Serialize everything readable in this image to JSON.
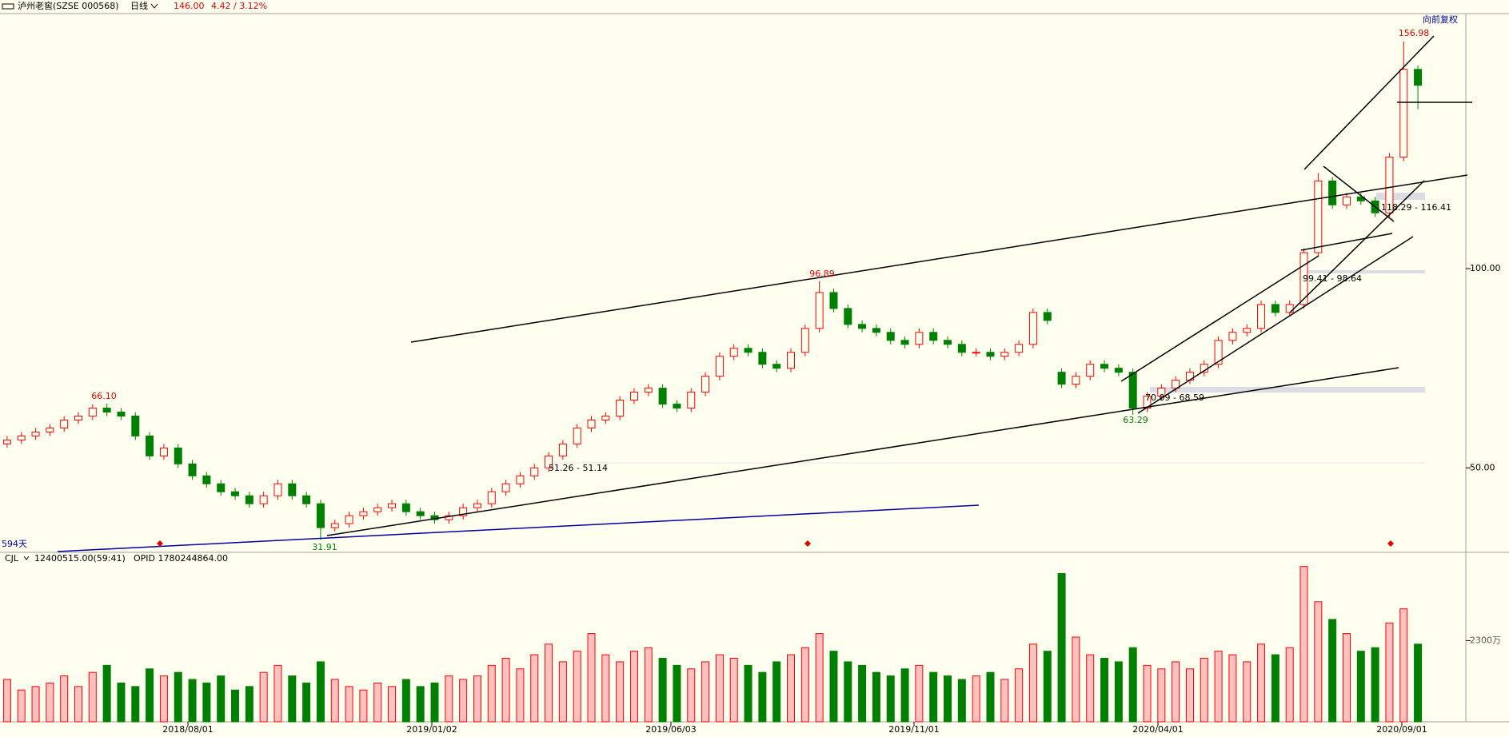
{
  "header": {
    "symbol": "泸州老窖(SZSE 000568)",
    "period": "日线",
    "price": "146.00",
    "change": "4.42 / 3.12%",
    "adjust": "向前复权"
  },
  "volume_header": {
    "name": "CJL",
    "value": "12400515.00(59:41)",
    "opid": "OPID 1780244864.00"
  },
  "annotations": {
    "high1": "66.10",
    "low1": "31.91",
    "high2": "96.89",
    "low2": "63.29",
    "high3": "156.98",
    "range1": "51.26 - 51.14",
    "range2": "70.09 - 68.59",
    "range3": "99.41 - 98.64",
    "range4": "118.29 - 116.41",
    "days": "594天"
  },
  "chart_data": {
    "type": "candlestick",
    "up_color": "#ff0000",
    "down_color": "#008000",
    "xlabels": [
      "2018/08/01",
      "2019/01/02",
      "2019/06/03",
      "2019/11/01",
      "2020/04/01",
      "2020/09/01"
    ],
    "ylim": [
      29,
      164
    ],
    "yticks": [
      {
        "value": 50,
        "label": "50.00"
      },
      {
        "value": 100,
        "label": "100.00"
      }
    ],
    "open": [
      56,
      57,
      58,
      59,
      60,
      62,
      63,
      65,
      64,
      63,
      58,
      53,
      55,
      51,
      48,
      46,
      44,
      43,
      41,
      43,
      46,
      43,
      41,
      35,
      36,
      38,
      39,
      40,
      41,
      39,
      38,
      37,
      38,
      40,
      41,
      44,
      46,
      48,
      50,
      53,
      56,
      60,
      62,
      63,
      67,
      69,
      70,
      66,
      65,
      69,
      73,
      78,
      80,
      79,
      76,
      75,
      79,
      85,
      94,
      90,
      86,
      85,
      84,
      82,
      81,
      84,
      82,
      81,
      79,
      79,
      78,
      79,
      81,
      89,
      74,
      71,
      73,
      76,
      75,
      74,
      65,
      68,
      70,
      72,
      74,
      76,
      82,
      84,
      85,
      91,
      89,
      91,
      104,
      122,
      116,
      118,
      117,
      114,
      128,
      150
    ],
    "high": [
      58,
      59,
      60,
      61,
      63,
      64,
      66,
      66.1,
      65,
      64,
      59,
      56,
      56,
      52,
      49,
      47,
      45,
      44,
      44,
      47,
      47,
      44,
      42,
      37,
      39,
      40,
      41,
      42,
      42,
      40,
      39,
      39,
      41,
      42,
      45,
      47,
      49,
      51,
      54,
      57,
      61,
      63,
      64,
      68,
      70,
      71,
      71,
      67,
      70,
      74,
      79,
      81,
      81,
      80,
      77,
      80,
      86,
      96.89,
      95,
      91,
      87,
      86,
      85,
      83,
      85,
      85,
      83,
      82,
      80,
      80,
      80,
      82,
      90,
      90,
      75,
      74,
      77,
      77,
      76,
      75,
      69,
      71,
      73,
      75,
      77,
      83,
      85,
      86,
      92,
      92,
      92,
      105,
      124,
      123,
      119,
      119,
      118,
      129,
      156.98,
      151
    ],
    "low": [
      55,
      56,
      57,
      58,
      59,
      61,
      62,
      63,
      62,
      57,
      52,
      52,
      50,
      47,
      45,
      43,
      42,
      40,
      40,
      42,
      42,
      40,
      31.91,
      34,
      35,
      37,
      38,
      39,
      38,
      37,
      36,
      36,
      37,
      39,
      40,
      43,
      45,
      47,
      49,
      52,
      55,
      59,
      61,
      62,
      66,
      68,
      65,
      64,
      64,
      68,
      72,
      77,
      78,
      75,
      74,
      74,
      78,
      84,
      89,
      85,
      84,
      83,
      81,
      80,
      80,
      81,
      80,
      78,
      78,
      77,
      77,
      78,
      80,
      86,
      70,
      70,
      72,
      74,
      73,
      63.29,
      64,
      67,
      69,
      71,
      73,
      75,
      81,
      83,
      84,
      88,
      88,
      90,
      103,
      115,
      115,
      116,
      113,
      113,
      127,
      140
    ],
    "close": [
      57,
      58,
      59,
      60,
      62,
      63,
      65,
      64,
      63,
      58,
      53,
      55,
      51,
      48,
      46,
      44,
      43,
      41,
      43,
      46,
      43,
      41,
      35,
      36,
      38,
      39,
      40,
      41,
      39,
      38,
      37,
      38,
      40,
      41,
      44,
      46,
      48,
      50,
      53,
      56,
      60,
      62,
      63,
      67,
      69,
      70,
      66,
      65,
      69,
      73,
      78,
      80,
      79,
      76,
      75,
      79,
      85,
      94,
      90,
      86,
      85,
      84,
      82,
      81,
      84,
      82,
      81,
      79,
      79,
      78,
      79,
      81,
      89,
      87,
      71,
      73,
      76,
      75,
      74,
      65,
      68,
      70,
      72,
      74,
      76,
      82,
      84,
      85,
      91,
      89,
      91,
      104,
      122,
      116,
      118,
      117,
      114,
      128,
      150,
      146
    ],
    "volume": [
      1200,
      900,
      1000,
      1100,
      1300,
      1000,
      1400,
      1600,
      1100,
      1000,
      1500,
      1300,
      1400,
      1200,
      1100,
      1300,
      900,
      1000,
      1400,
      1600,
      1300,
      1100,
      1700,
      1200,
      1000,
      900,
      1100,
      1000,
      1200,
      1000,
      1100,
      1300,
      1200,
      1300,
      1600,
      1800,
      1500,
      1900,
      2200,
      1700,
      2000,
      2500,
      1900,
      1700,
      2000,
      2100,
      1800,
      1600,
      1500,
      1700,
      1900,
      1800,
      1600,
      1400,
      1700,
      1900,
      2100,
      2500,
      2000,
      1700,
      1600,
      1400,
      1300,
      1500,
      1600,
      1400,
      1300,
      1200,
      1300,
      1400,
      1200,
      1500,
      2200,
      2000,
      4200,
      2400,
      1900,
      1800,
      1700,
      2100,
      1600,
      1500,
      1700,
      1500,
      1800,
      2000,
      1900,
      1700,
      2200,
      1900,
      2100,
      4400,
      3400,
      2900,
      2500,
      2000,
      2100,
      2800,
      3200,
      2200
    ],
    "vlim": [
      0,
      4370
    ],
    "vticks": [
      {
        "value": 2300,
        "label": "2300万"
      }
    ]
  }
}
